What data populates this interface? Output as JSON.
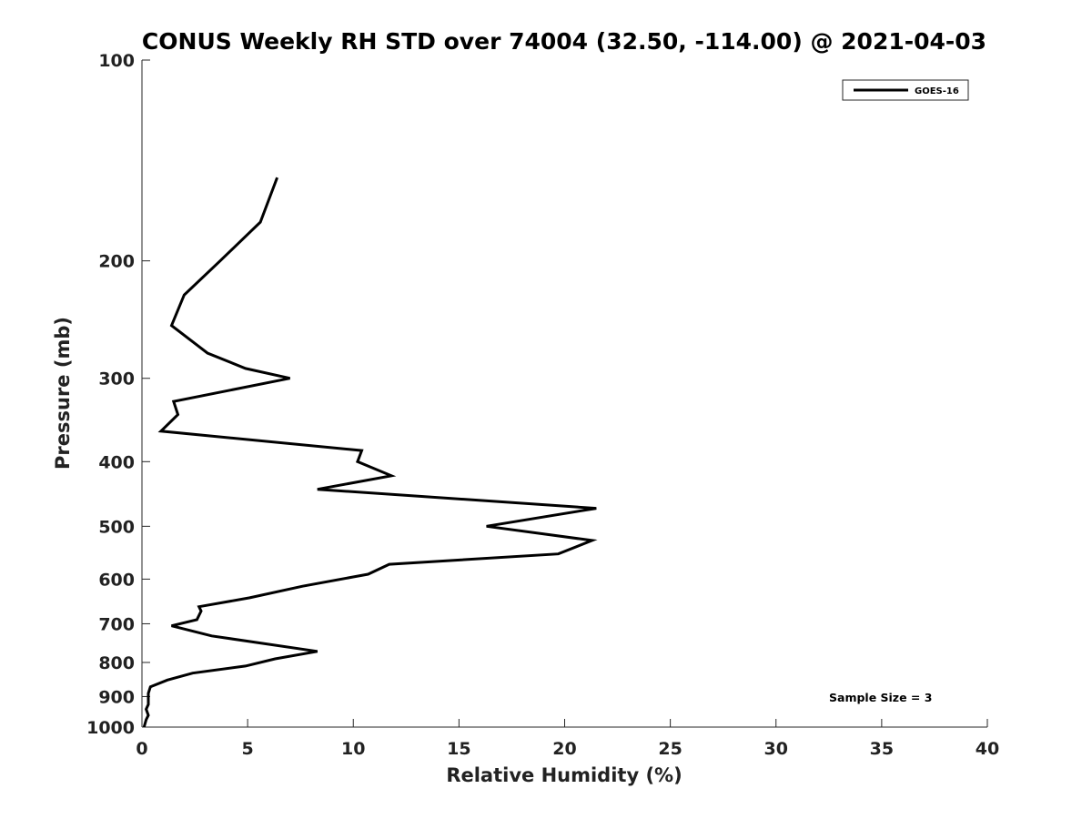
{
  "chart_data": {
    "type": "line",
    "title": "CONUS Weekly RH STD over 74004 (32.50, -114.00) @ 2021-04-03",
    "xlabel": "Relative Humidity (%)",
    "ylabel": "Pressure (mb)",
    "xlim": [
      0,
      40
    ],
    "ylim": [
      100,
      1000
    ],
    "y_scale": "log",
    "y_reversed": true,
    "x_ticks": [
      0,
      5,
      10,
      15,
      20,
      25,
      30,
      35,
      40
    ],
    "y_ticks": [
      100,
      200,
      300,
      400,
      500,
      600,
      700,
      800,
      900,
      1000
    ],
    "grid": false,
    "legend_position": "top-right",
    "series": [
      {
        "name": "GOES-16",
        "color": "#000000",
        "x": [
          6.4,
          5.6,
          3.7,
          2.0,
          1.4,
          3.1,
          4.9,
          7.0,
          1.5,
          1.7,
          0.9,
          10.4,
          10.2,
          11.8,
          8.3,
          21.5,
          16.3,
          21.3,
          19.7,
          11.7,
          10.7,
          7.6,
          5.1,
          2.7,
          2.8,
          2.6,
          1.4,
          3.3,
          8.3,
          6.3,
          4.9,
          2.4,
          1.2,
          0.4,
          0.3,
          0.3,
          0.3,
          0.2,
          0.3,
          0.2,
          0.1
        ],
        "y": [
          150,
          175,
          200,
          225,
          250,
          275,
          290,
          300,
          325,
          340,
          360,
          385,
          400,
          420,
          440,
          470,
          500,
          525,
          550,
          570,
          590,
          615,
          640,
          660,
          670,
          690,
          705,
          730,
          770,
          790,
          810,
          830,
          850,
          870,
          890,
          910,
          925,
          940,
          960,
          975,
          1000
        ]
      }
    ],
    "annotations": [
      "Sample Size = 3"
    ]
  }
}
